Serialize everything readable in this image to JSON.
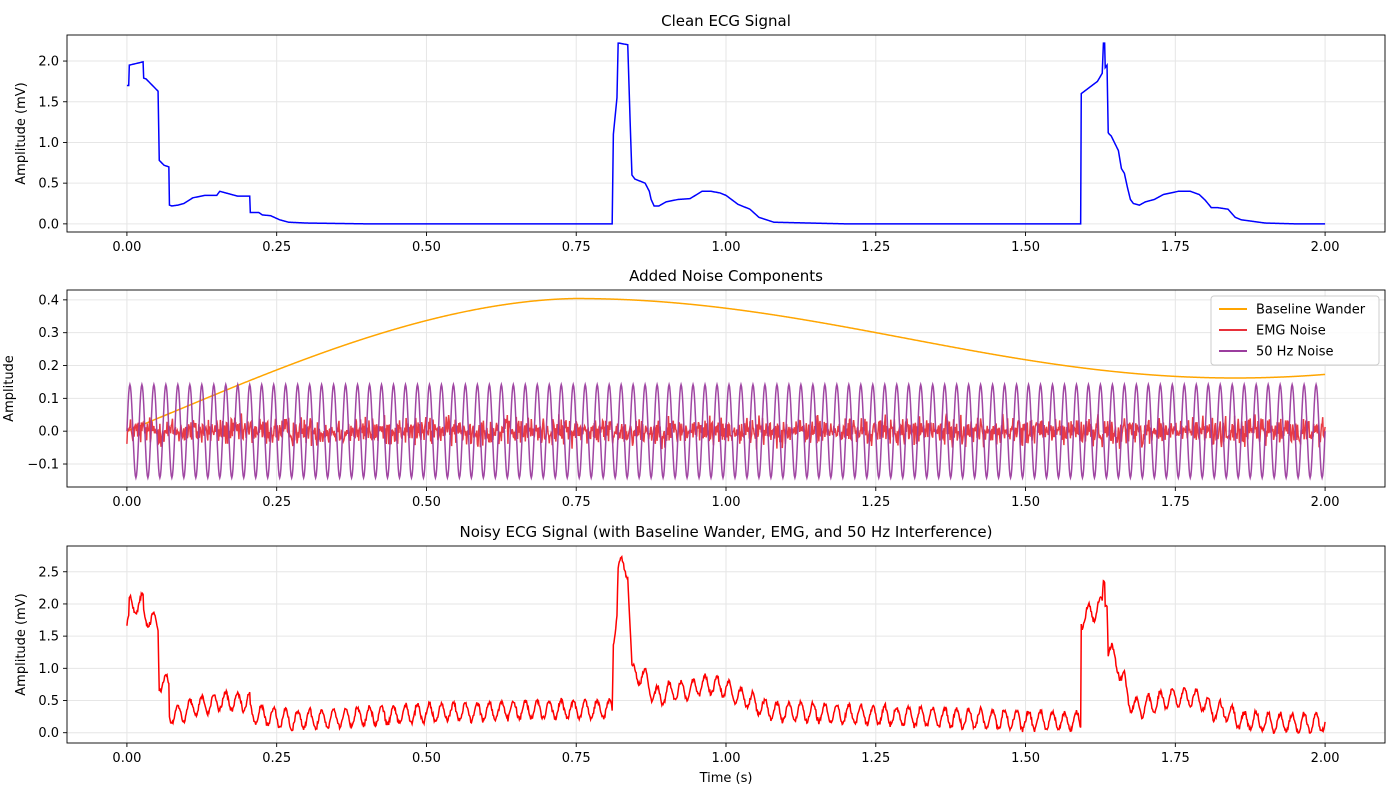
{
  "chart_data": [
    {
      "type": "line",
      "title": "Clean ECG Signal",
      "xlabel": "",
      "ylabel": "Amplitude (mV)",
      "xlim": [
        -0.1,
        2.1
      ],
      "ylim": [
        -0.1,
        2.32
      ],
      "xticks": [
        0.0,
        0.25,
        0.5,
        0.75,
        1.0,
        1.25,
        1.5,
        1.75,
        2.0
      ],
      "xtick_labels": [
        "0.00",
        "0.25",
        "0.50",
        "0.75",
        "1.00",
        "1.25",
        "1.50",
        "1.75",
        "2.00"
      ],
      "yticks": [
        0.0,
        0.5,
        1.0,
        1.5,
        2.0
      ],
      "ytick_labels": [
        "0.0",
        "0.5",
        "1.0",
        "1.5",
        "2.0"
      ],
      "grid": true,
      "series": [
        {
          "color": "#0000ff",
          "x": [
            0.0,
            0.003,
            0.004,
            0.027,
            0.028,
            0.032,
            0.052,
            0.054,
            0.062,
            0.07,
            0.071,
            0.075,
            0.085,
            0.095,
            0.11,
            0.13,
            0.15,
            0.155,
            0.165,
            0.185,
            0.205,
            0.206,
            0.22,
            0.226,
            0.24,
            0.255,
            0.27,
            0.3,
            0.4,
            0.81,
            0.812,
            0.818,
            0.82,
            0.822,
            0.836,
            0.84,
            0.843,
            0.848,
            0.865,
            0.872,
            0.875,
            0.88,
            0.888,
            0.9,
            0.92,
            0.94,
            0.96,
            0.975,
            0.99,
            1.0,
            1.02,
            1.04,
            1.055,
            1.08,
            1.2,
            1.5,
            1.592,
            1.593,
            1.602,
            1.62,
            1.628,
            1.63,
            1.632,
            1.633,
            1.636,
            1.638,
            1.64,
            1.643,
            1.655,
            1.66,
            1.665,
            1.67,
            1.675,
            1.68,
            1.69,
            1.7,
            1.715,
            1.73,
            1.755,
            1.775,
            1.79,
            1.8,
            1.81,
            1.82,
            1.838,
            1.85,
            1.86,
            1.88,
            1.9,
            1.95,
            2.0
          ],
          "y": [
            1.7,
            1.7,
            1.95,
            1.99,
            1.79,
            1.78,
            1.63,
            0.78,
            0.72,
            0.7,
            0.23,
            0.22,
            0.23,
            0.25,
            0.32,
            0.35,
            0.35,
            0.4,
            0.38,
            0.34,
            0.34,
            0.14,
            0.14,
            0.11,
            0.1,
            0.05,
            0.02,
            0.01,
            0.0,
            0.0,
            1.1,
            1.55,
            2.22,
            2.22,
            2.2,
            1.25,
            0.6,
            0.55,
            0.5,
            0.4,
            0.3,
            0.22,
            0.22,
            0.27,
            0.3,
            0.31,
            0.4,
            0.4,
            0.38,
            0.35,
            0.24,
            0.18,
            0.08,
            0.02,
            0.0,
            0.0,
            0.0,
            1.6,
            1.65,
            1.75,
            1.85,
            2.22,
            2.22,
            1.92,
            1.95,
            1.12,
            1.1,
            1.08,
            0.9,
            0.68,
            0.62,
            0.45,
            0.3,
            0.25,
            0.23,
            0.27,
            0.3,
            0.36,
            0.4,
            0.4,
            0.36,
            0.29,
            0.2,
            0.2,
            0.18,
            0.08,
            0.05,
            0.03,
            0.01,
            0.0,
            0.0
          ]
        }
      ]
    },
    {
      "type": "line",
      "title": "Added Noise Components",
      "xlabel": "",
      "ylabel": "Amplitude",
      "xlim": [
        -0.1,
        2.1
      ],
      "ylim": [
        -0.17,
        0.43
      ],
      "xticks": [
        0.0,
        0.25,
        0.5,
        0.75,
        1.0,
        1.25,
        1.5,
        1.75,
        2.0
      ],
      "xtick_labels": [
        "0.00",
        "0.25",
        "0.50",
        "0.75",
        "1.00",
        "1.25",
        "1.50",
        "1.75",
        "2.00"
      ],
      "yticks": [
        -0.1,
        0.0,
        0.1,
        0.2,
        0.3,
        0.4
      ],
      "ytick_labels": [
        "−0.1",
        "0.0",
        "0.1",
        "0.2",
        "0.3",
        "0.4"
      ],
      "grid": true,
      "legend": "top-right",
      "series": [
        {
          "name": "Baseline Wander",
          "color": "#ffa500",
          "kind": "baseline",
          "offset": 0.28,
          "amplitude": 0.12,
          "freq_hz": 0.5,
          "phase": 0.0
        },
        {
          "name": "EMG Noise",
          "color": "#e8303a",
          "kind": "emg",
          "amplitude": 0.03
        },
        {
          "name": "50 Hz Noise",
          "color": "#9b3d9e",
          "kind": "sine",
          "amplitude": 0.142,
          "freq_hz": 50
        }
      ]
    },
    {
      "type": "line",
      "title": "Noisy ECG Signal (with Baseline Wander, EMG, and 50 Hz Interference)",
      "xlabel": "Time (s)",
      "ylabel": "Amplitude (mV)",
      "xlim": [
        -0.1,
        2.1
      ],
      "ylim": [
        -0.16,
        2.9
      ],
      "xticks": [
        0.0,
        0.25,
        0.5,
        0.75,
        1.0,
        1.25,
        1.5,
        1.75,
        2.0
      ],
      "xtick_labels": [
        "0.00",
        "0.25",
        "0.50",
        "0.75",
        "1.00",
        "1.25",
        "1.50",
        "1.75",
        "2.00"
      ],
      "yticks": [
        0.0,
        0.5,
        1.0,
        1.5,
        2.0,
        2.5
      ],
      "ytick_labels": [
        "0.0",
        "0.5",
        "1.0",
        "1.5",
        "2.0",
        "2.5"
      ],
      "grid": true,
      "series": [
        {
          "color": "#ff0000",
          "kind": "sum_of_above"
        }
      ]
    }
  ]
}
